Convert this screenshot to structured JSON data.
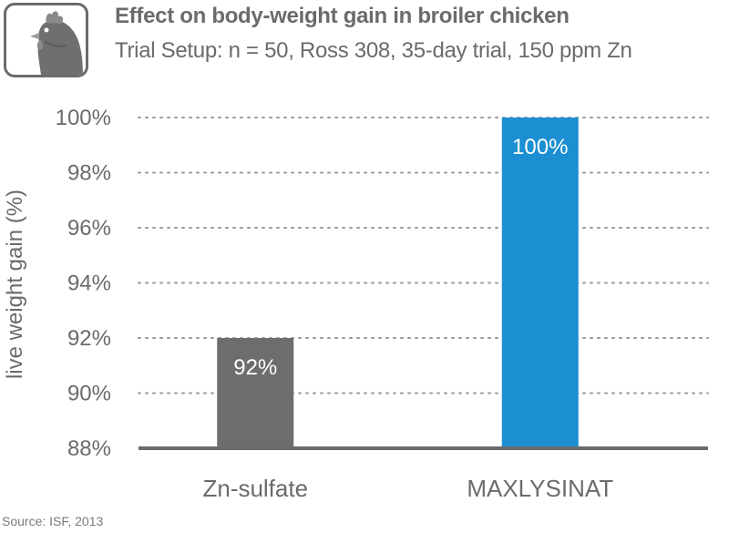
{
  "header": {
    "logo_icon": "chicken-icon",
    "title": "Effect on body-weight gain in broiler chicken",
    "subtitle": "Trial Setup: n = 50, Ross 308, 35-day trial, 150 ppm Zn"
  },
  "footer": {
    "source": "Source: ISF, 2013"
  },
  "chart_data": {
    "type": "bar",
    "categories": [
      "Zn-sulfate",
      "MAXLYSINAT"
    ],
    "values": [
      92,
      100
    ],
    "value_labels": [
      "92%",
      "100%"
    ],
    "colors": [
      "#6d6d6d",
      "#1b8fd2"
    ],
    "ylabel": "live weight gain (%)",
    "ylim": [
      88,
      100
    ],
    "yticks": [
      88,
      90,
      92,
      94,
      96,
      98,
      100
    ],
    "ytick_labels": [
      "88%",
      "90%",
      "92%",
      "94%",
      "96%",
      "98%",
      "100%"
    ],
    "grid": true,
    "legend": "none"
  }
}
